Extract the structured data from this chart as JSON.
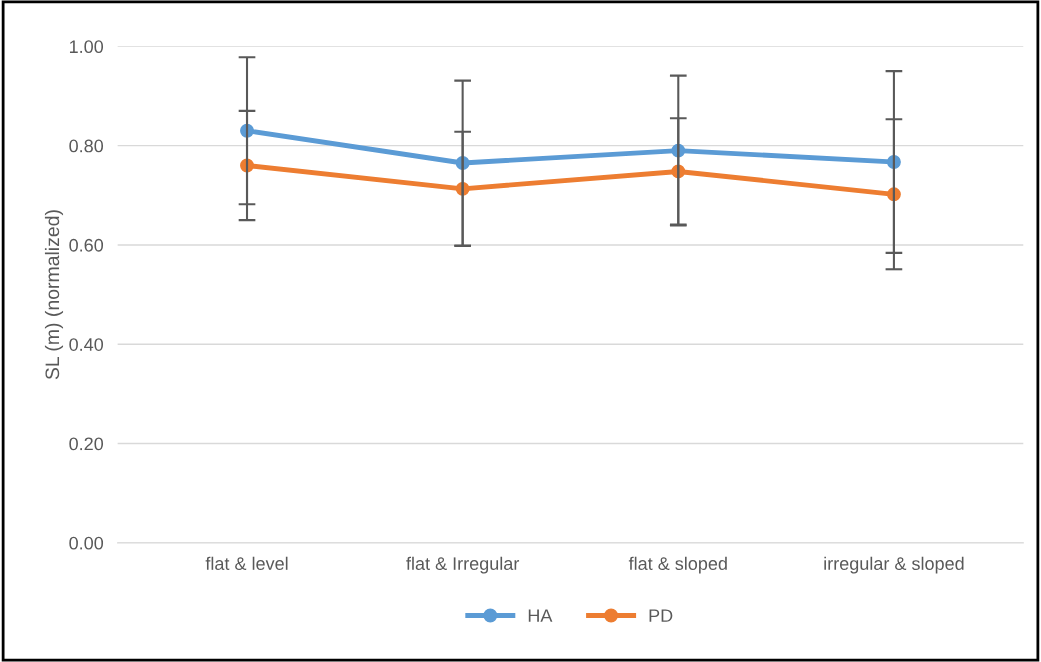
{
  "chart_data": {
    "type": "line",
    "ylabel": "SL (m) (normalized)",
    "categories": [
      "flat & level",
      "flat & Irregular",
      "flat & sloped",
      "irregular & sloped"
    ],
    "series": [
      {
        "name": "HA",
        "color": "#5b9bd5",
        "values": [
          0.83,
          0.765,
          0.79,
          0.767
        ],
        "errors": [
          0.148,
          0.166,
          0.151,
          0.183
        ]
      },
      {
        "name": "PD",
        "color": "#ed7d31",
        "values": [
          0.76,
          0.713,
          0.748,
          0.702
        ],
        "errors": [
          0.11,
          0.115,
          0.107,
          0.151
        ]
      }
    ],
    "ylim": [
      0,
      1.0
    ],
    "yticks": [
      {
        "value": 0,
        "label": "0.00"
      },
      {
        "value": 0.2,
        "label": "0.20"
      },
      {
        "value": 0.4,
        "label": "0.40"
      },
      {
        "value": 0.6,
        "label": "0.60"
      },
      {
        "value": 0.8,
        "label": "0.80"
      },
      {
        "value": 1.0,
        "label": "1.00"
      }
    ],
    "grid": "y",
    "legend": "bottom",
    "marker": "circle",
    "line_style": "solid"
  }
}
